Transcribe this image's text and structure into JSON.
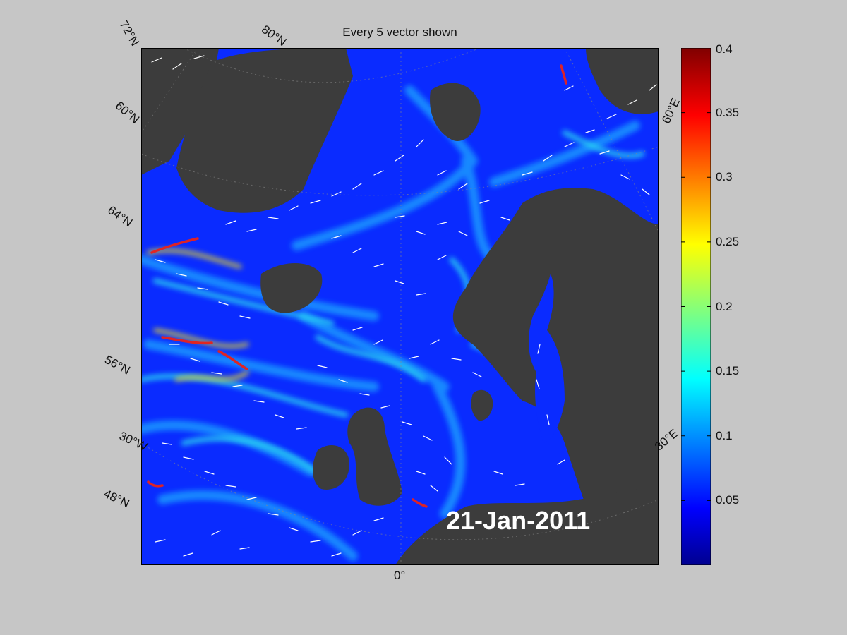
{
  "title": "Every 5 vector shown",
  "date_label": "21-Jan-2011",
  "map_labels": {
    "lat_72": "72°N",
    "lat_80": "80°N",
    "lat_60": "60°N",
    "lat_64": "64°N",
    "lat_56": "56°N",
    "lat_48": "48°N",
    "lon_30w": "30°W",
    "lon_0": "0°",
    "lon_30e": "30°E",
    "lon_60e": "60°E"
  },
  "colorbar": {
    "min": 0,
    "max": 0.4,
    "ticks": [
      "0.4",
      "0.35",
      "0.3",
      "0.25",
      "0.2",
      "0.15",
      "0.1",
      "0.05"
    ],
    "colormap": "jet"
  },
  "colors": {
    "background": "#c6c6c6",
    "land": "#3c3c3c",
    "ocean_low": "#0a2bff",
    "vector": "#ffffff"
  }
}
